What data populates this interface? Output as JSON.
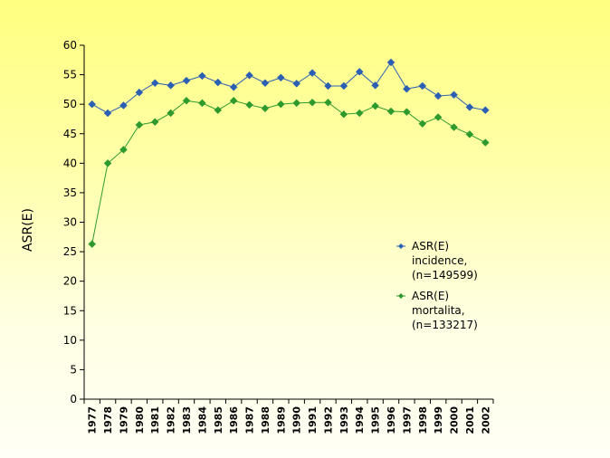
{
  "chart_data": {
    "type": "line",
    "title": "",
    "xlabel": "",
    "ylabel": "ASR(E)",
    "ylim": [
      0,
      60
    ],
    "yticks": [
      0,
      5,
      10,
      15,
      20,
      25,
      30,
      35,
      40,
      45,
      50,
      55,
      60
    ],
    "grid": false,
    "legend_position": "right",
    "categories": [
      "1977",
      "1978",
      "1979",
      "1980",
      "1981",
      "1982",
      "1983",
      "1984",
      "1985",
      "1986",
      "1987",
      "1988",
      "1989",
      "1990",
      "1991",
      "1992",
      "1993",
      "1994",
      "1995",
      "1996",
      "1997",
      "1998",
      "1999",
      "2000",
      "2001",
      "2002"
    ],
    "series": [
      {
        "name": "ASR(E) incidence, (n=149599)",
        "legend_lines": [
          "ASR(E)",
          "incidence,",
          "(n=149599)"
        ],
        "color": "#2b5fb4",
        "values": [
          50.0,
          48.5,
          49.8,
          52.0,
          53.6,
          53.2,
          54.0,
          54.8,
          53.7,
          52.9,
          54.9,
          53.6,
          54.5,
          53.5,
          55.3,
          53.1,
          53.1,
          55.5,
          53.2,
          57.1,
          52.6,
          53.1,
          51.4,
          51.6,
          49.5,
          49.0
        ]
      },
      {
        "name": "ASR(E) mortalita, (n=133217)",
        "legend_lines": [
          "ASR(E)",
          "mortalita,",
          "(n=133217)"
        ],
        "color": "#2e9a2e",
        "values": [
          26.3,
          40.0,
          42.3,
          46.5,
          47.0,
          48.5,
          50.6,
          50.2,
          49.0,
          50.6,
          49.9,
          49.3,
          50.0,
          50.2,
          50.3,
          50.3,
          48.3,
          48.5,
          49.7,
          48.8,
          48.7,
          46.7,
          47.8,
          46.1,
          44.9,
          43.5
        ]
      }
    ]
  }
}
